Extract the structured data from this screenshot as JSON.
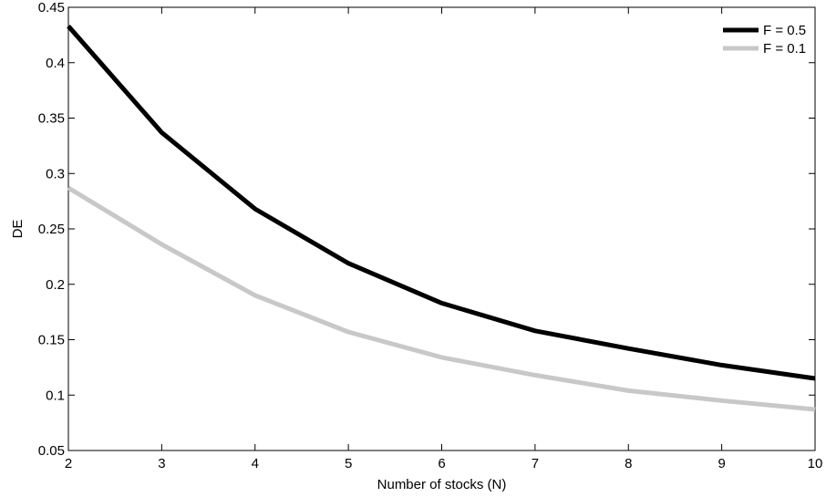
{
  "chart_data": {
    "type": "line",
    "title": "",
    "xlabel": "Number of stocks (N)",
    "ylabel": "DE",
    "xlim": [
      2,
      10
    ],
    "ylim": [
      0.05,
      0.45
    ],
    "xticks": [
      2,
      3,
      4,
      5,
      6,
      7,
      8,
      9,
      10
    ],
    "xtick_labels": [
      "2",
      "3",
      "4",
      "5",
      "6",
      "7",
      "8",
      "9",
      "10"
    ],
    "yticks": [
      0.05,
      0.1,
      0.15,
      0.2,
      0.25,
      0.3,
      0.35,
      0.4,
      0.45
    ],
    "ytick_labels": [
      "0.05",
      "0.1",
      "0.15",
      "0.2",
      "0.25",
      "0.3",
      "0.35",
      "0.4",
      "0.45"
    ],
    "grid": false,
    "legend_position": "top-right",
    "x": [
      2,
      3,
      4,
      5,
      6,
      7,
      8,
      9,
      10
    ],
    "series": [
      {
        "name": "F = 0.5",
        "color": "#000000",
        "values": [
          0.433,
          0.337,
          0.268,
          0.219,
          0.183,
          0.158,
          0.142,
          0.127,
          0.115
        ]
      },
      {
        "name": "F = 0.1",
        "color": "#c8c8c8",
        "values": [
          0.287,
          0.236,
          0.19,
          0.157,
          0.134,
          0.118,
          0.104,
          0.095,
          0.087
        ]
      }
    ]
  }
}
